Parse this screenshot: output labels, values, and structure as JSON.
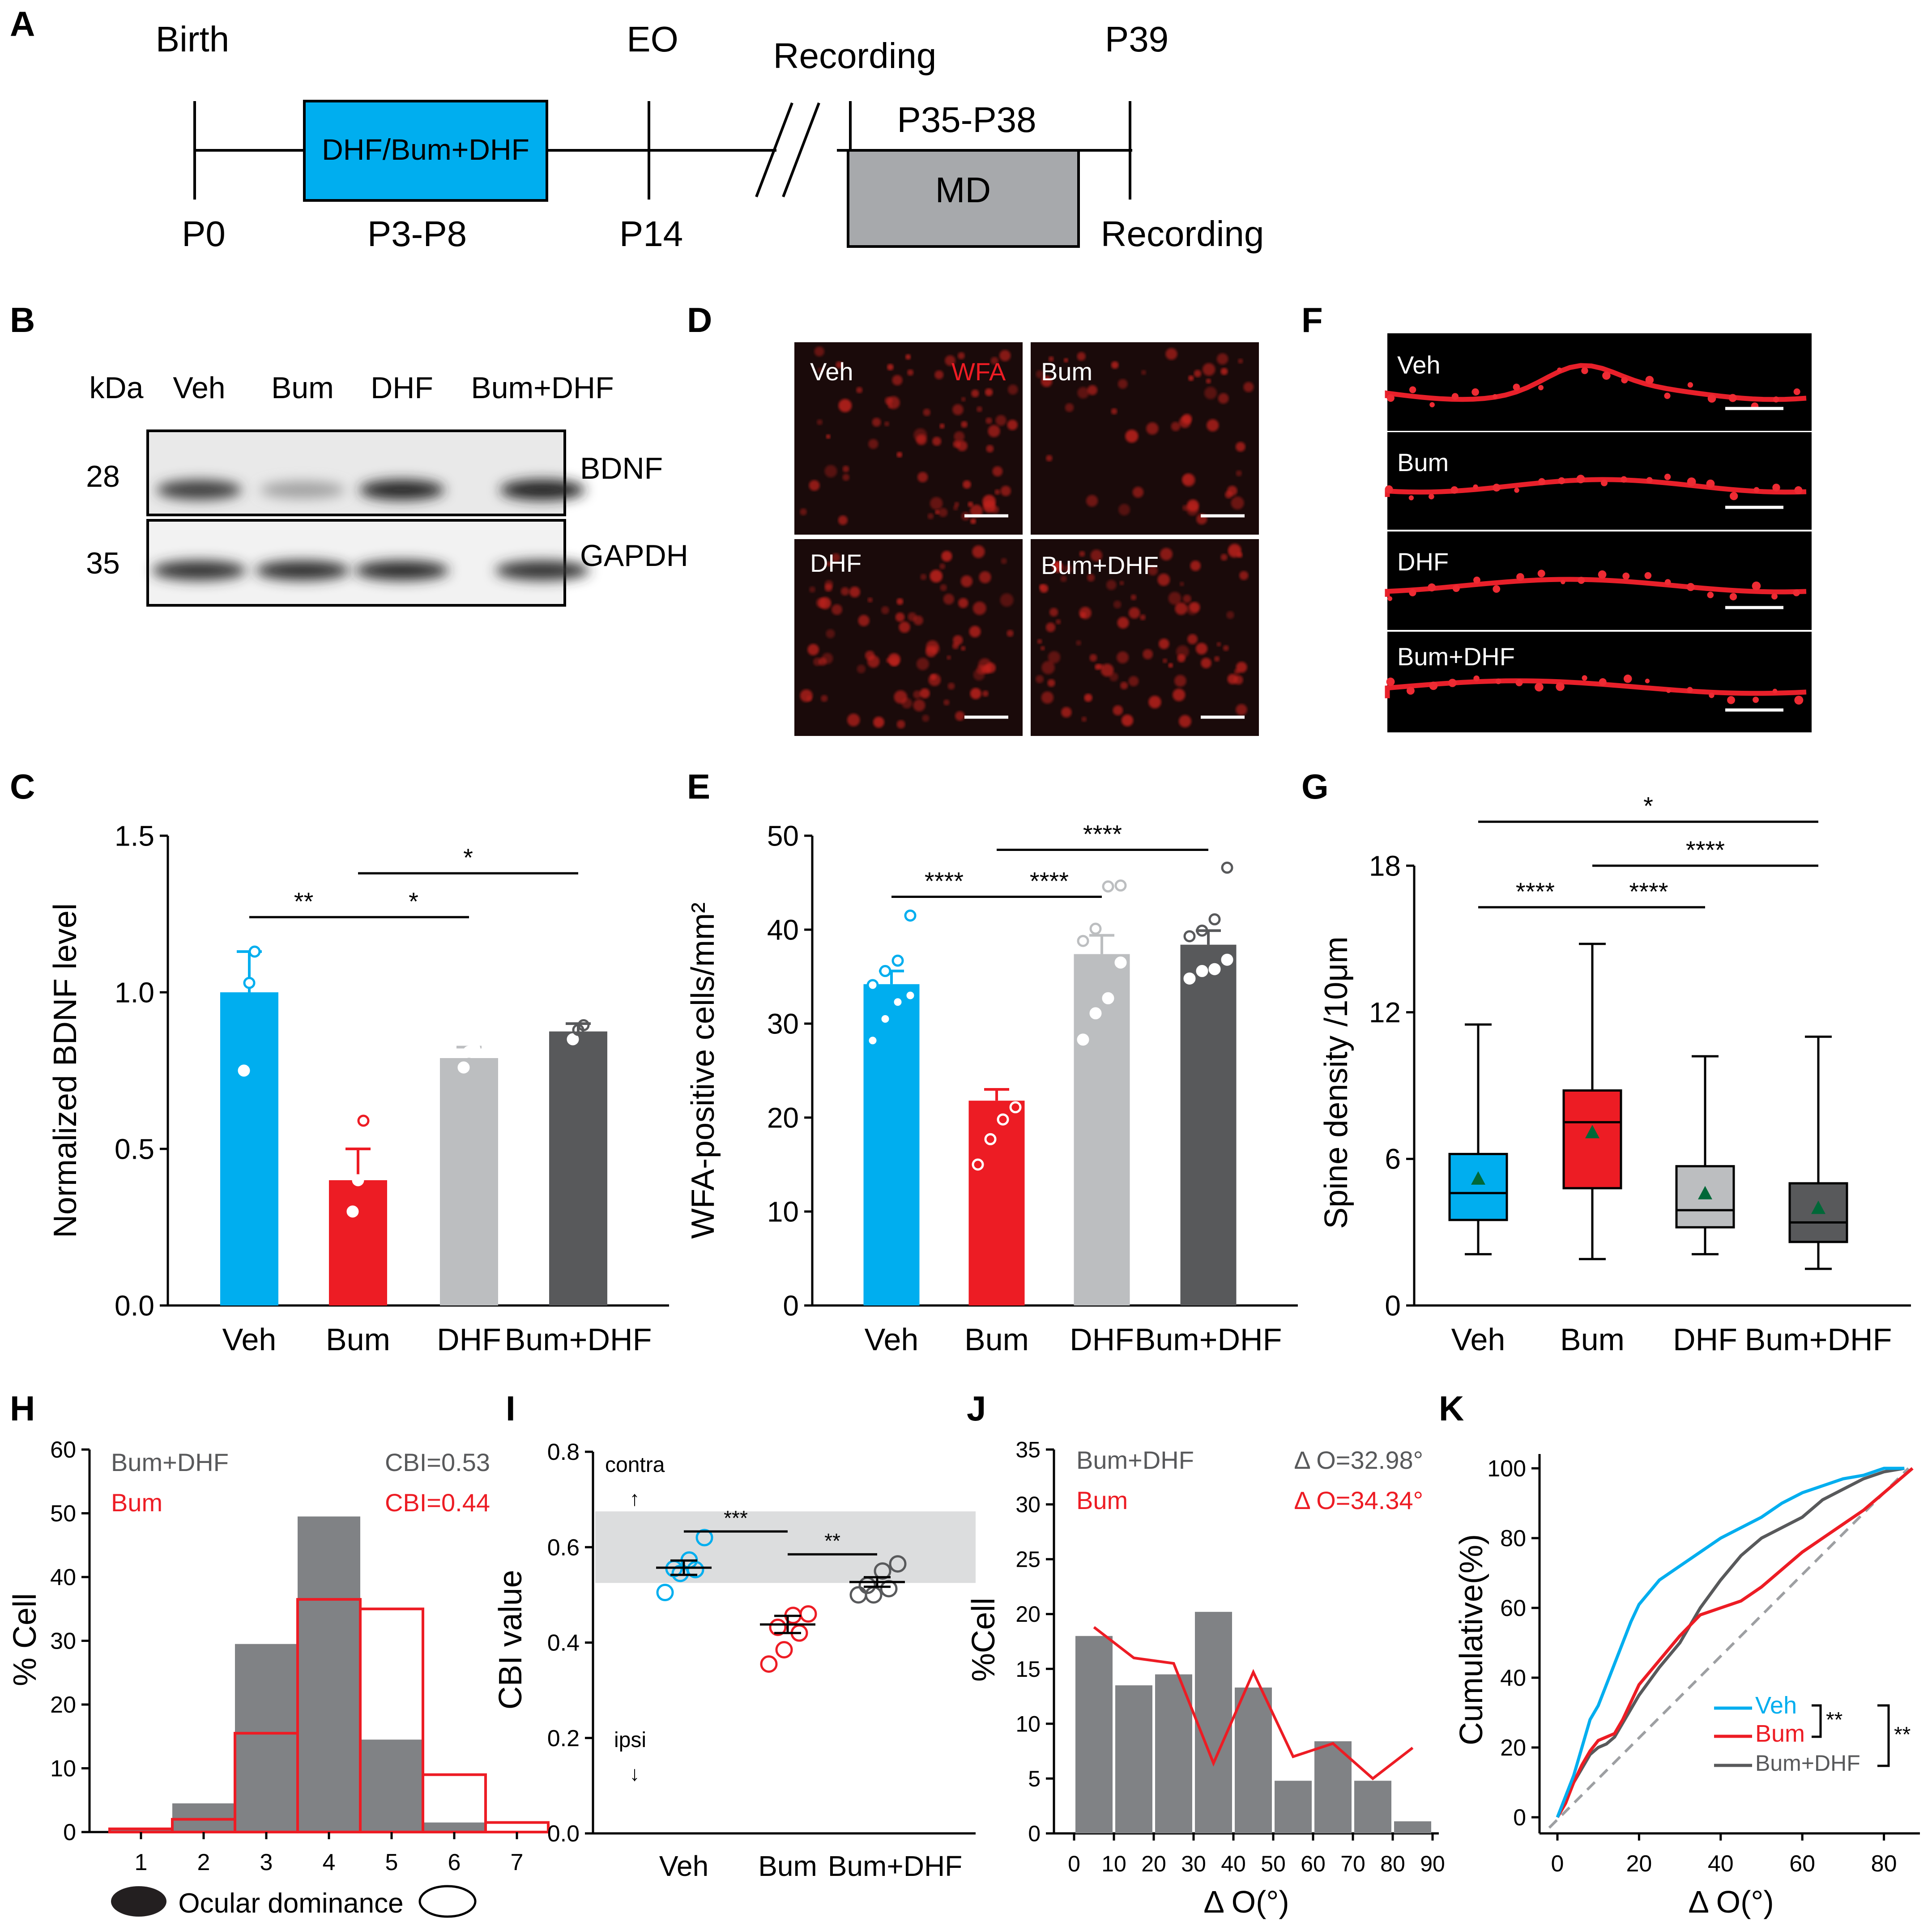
{
  "colors": {
    "veh": "#00AEEF",
    "bum": "#ED1C24",
    "dhf": "#BCBEC0",
    "bumdhf": "#58595B",
    "hist_gray": "#808285",
    "band": "#DCDDDE",
    "median_marker": "#006838"
  },
  "panelA": {
    "letter": "A",
    "birth": "Birth",
    "eo": "EO",
    "recording_top": "Recording",
    "p39": "P39",
    "drug_box": "DHF/Bum+DHF",
    "p35_p38": "P35-P38",
    "md_box": "MD",
    "p0": "P0",
    "p3_p8": "P3-P8",
    "p14": "P14",
    "recording_bottom": "Recording"
  },
  "panelB": {
    "letter": "B",
    "kda": "kDa",
    "lanes": [
      "Veh",
      "Bum",
      "DHF",
      "Bum+DHF"
    ],
    "mw_top": "28",
    "mw_bottom": "35",
    "band_top": "BDNF",
    "band_bottom": "GAPDH",
    "bdnf_intensity": [
      0.85,
      0.35,
      0.95,
      0.98
    ],
    "gapdh_intensity": [
      0.9,
      0.92,
      0.94,
      0.9
    ]
  },
  "panelD": {
    "letter": "D",
    "labels": [
      "Veh",
      "Bum",
      "DHF",
      "Bum+DHF"
    ],
    "stain": "WFA"
  },
  "panelF": {
    "letter": "F",
    "labels": [
      "Veh",
      "Bum",
      "DHF",
      "Bum+DHF"
    ]
  },
  "chart_data": [
    {
      "panel": "C",
      "type": "bar",
      "categories": [
        "Veh",
        "Bum",
        "DHF",
        "Bum+DHF"
      ],
      "values": [
        1.0,
        0.4,
        0.79,
        0.875
      ],
      "errors": [
        0.13,
        0.1,
        0.035,
        0.025
      ],
      "points": [
        [
          0.75,
          1.03,
          1.13
        ],
        [
          0.3,
          0.4,
          0.59
        ],
        [
          0.76,
          0.81,
          0.82
        ],
        [
          0.85,
          0.88,
          0.895
        ]
      ],
      "ylabel": "Normalized BDNF level",
      "ylim": [
        0,
        1.5
      ],
      "yticks": [
        "0.0",
        "0.5",
        "1.0",
        "1.5"
      ],
      "significance": [
        {
          "from": 0,
          "to": 1,
          "y": 1.24,
          "label": "**"
        },
        {
          "from": 1,
          "to": 2,
          "y": 1.24,
          "label": "*"
        },
        {
          "from": 1,
          "to": 3,
          "y": 1.38,
          "label": "*"
        }
      ]
    },
    {
      "panel": "E",
      "type": "bar",
      "categories": [
        "Veh",
        "Bum",
        "DHF",
        "Bum+DHF"
      ],
      "values": [
        34.2,
        21.8,
        37.4,
        38.4
      ],
      "errors": [
        1.4,
        1.2,
        2.0,
        1.5
      ],
      "points": [
        [
          28.2,
          30.5,
          32.3,
          33.0,
          34.1,
          35.6,
          36.7,
          41.5
        ],
        [
          15.0,
          17.7,
          19.8,
          21.1,
          22.7,
          23.8,
          24.8,
          25.0
        ],
        [
          28.3,
          31.1,
          32.7,
          36.5,
          38.8,
          40.1,
          44.6,
          44.7
        ],
        [
          34.8,
          35.6,
          35.8,
          36.8,
          39.3,
          39.9,
          41.1,
          46.6
        ]
      ],
      "ylabel": "WFA-positive cells/mm²",
      "ylim": [
        0,
        50
      ],
      "yticks": [
        "0",
        "10",
        "20",
        "30",
        "40",
        "50"
      ],
      "significance": [
        {
          "from": 0,
          "to": 1,
          "y": 43.5,
          "label": "****"
        },
        {
          "from": 1,
          "to": 2,
          "y": 43.5,
          "label": "****"
        },
        {
          "from": 1,
          "to": 3,
          "y": 48.5,
          "label": "****"
        }
      ]
    },
    {
      "panel": "G",
      "type": "box",
      "categories": [
        "Veh",
        "Bum",
        "DHF",
        "Bum+DHF"
      ],
      "boxes": [
        {
          "min": 2.1,
          "q1": 3.5,
          "median": 4.6,
          "q3": 6.2,
          "max": 11.5,
          "mean": 5.2
        },
        {
          "min": 1.9,
          "q1": 4.8,
          "median": 7.5,
          "q3": 8.8,
          "max": 14.8,
          "mean": 7.1
        },
        {
          "min": 2.1,
          "q1": 3.2,
          "median": 3.9,
          "q3": 5.7,
          "max": 10.2,
          "mean": 4.6
        },
        {
          "min": 1.5,
          "q1": 2.6,
          "median": 3.4,
          "q3": 5.0,
          "max": 11.0,
          "mean": 4.0
        }
      ],
      "ylabel": "Spine density /10μm",
      "ylim": [
        0,
        18
      ],
      "yticks": [
        "0",
        "6",
        "12",
        "18"
      ],
      "significance": [
        {
          "from": 0,
          "to": 1,
          "y": 16.3,
          "label": "****"
        },
        {
          "from": 1,
          "to": 2,
          "y": 16.3,
          "label": "****"
        },
        {
          "from": 1,
          "to": 3,
          "y": 18.0,
          "label": "****"
        },
        {
          "from": 0,
          "to": 3,
          "y": 19.8,
          "label": "*"
        }
      ]
    },
    {
      "panel": "H",
      "type": "bar",
      "categories": [
        "1",
        "2",
        "3",
        "4",
        "5",
        "6",
        "7"
      ],
      "series": [
        {
          "name": "Bum+DHF",
          "values": [
            0.5,
            4.5,
            29.5,
            49.5,
            14.5,
            1.5,
            0.0
          ]
        },
        {
          "name": "Bum",
          "values": [
            0.5,
            2.0,
            15.5,
            36.5,
            35.0,
            9.0,
            1.5
          ]
        }
      ],
      "legend_cbi": [
        "CBI=0.53",
        "CBI=0.44"
      ],
      "ylabel": "% Cell",
      "xlabel": "Ocular dominance",
      "ylim": [
        0,
        60
      ],
      "yticks": [
        "0",
        "10",
        "20",
        "30",
        "40",
        "50",
        "60"
      ]
    },
    {
      "panel": "I",
      "type": "scatter",
      "categories": [
        "Veh",
        "Bum",
        "Bum+DHF"
      ],
      "means": [
        0.557,
        0.438,
        0.527
      ],
      "sem": [
        0.015,
        0.018,
        0.01
      ],
      "points": [
        [
          0.505,
          0.545,
          0.553,
          0.555,
          0.573,
          0.62
        ],
        [
          0.355,
          0.385,
          0.42,
          0.432,
          0.457,
          0.46
        ],
        [
          0.5,
          0.5,
          0.513,
          0.52,
          0.55,
          0.565
        ]
      ],
      "band": [
        0.525,
        0.675
      ],
      "contra_label": "contra",
      "ipsi_label": "ipsi",
      "ylabel": "CBI value",
      "ylim": [
        0,
        0.8
      ],
      "yticks": [
        "0.0",
        "0.2",
        "0.4",
        "0.6",
        "0.8"
      ],
      "significance": [
        {
          "from": 0,
          "to": 1,
          "y": 0.633,
          "label": "***"
        },
        {
          "from": 1,
          "to": 2,
          "y": 0.585,
          "label": "**"
        }
      ]
    },
    {
      "panel": "J",
      "type": "bar",
      "x": [
        5,
        15,
        25,
        35,
        45,
        55,
        65,
        75,
        85
      ],
      "series": [
        {
          "name": "Bum+DHF",
          "values": [
            18.0,
            13.5,
            14.5,
            20.2,
            13.3,
            4.8,
            8.4,
            4.8,
            1.1
          ]
        },
        {
          "name": "Bum",
          "values": [
            18.8,
            16.0,
            15.5,
            6.4,
            14.7,
            7.0,
            8.2,
            5.0,
            7.8
          ]
        }
      ],
      "legend_delta": [
        "Δ O=32.98°",
        "Δ O=34.34°"
      ],
      "ylabel": "%Cell",
      "xlabel": "Δ O(°)",
      "xticks": [
        "0",
        "10",
        "20",
        "30",
        "40",
        "50",
        "60",
        "70",
        "80",
        "90"
      ],
      "ylim": [
        0,
        35
      ],
      "yticks": [
        "0",
        "5",
        "10",
        "15",
        "20",
        "25",
        "30",
        "35"
      ]
    },
    {
      "panel": "K",
      "type": "line",
      "series": [
        {
          "name": "Veh",
          "x": [
            0,
            2,
            4,
            6,
            8,
            10,
            12,
            14,
            16,
            18,
            20,
            25,
            30,
            35,
            40,
            45,
            50,
            55,
            60,
            65,
            70,
            75,
            80,
            85
          ],
          "y": [
            0,
            6,
            12,
            20,
            28,
            32,
            38,
            44,
            50,
            56,
            61,
            68,
            72,
            76,
            80,
            83,
            86,
            90,
            93,
            95,
            97,
            98,
            100,
            100
          ]
        },
        {
          "name": "Bum",
          "x": [
            0,
            2,
            4,
            6,
            8,
            10,
            12,
            14,
            16,
            18,
            20,
            25,
            30,
            35,
            40,
            45,
            50,
            55,
            60,
            65,
            70,
            75,
            80,
            85,
            87
          ],
          "y": [
            0,
            4,
            10,
            15,
            19,
            22,
            23,
            24,
            28,
            33,
            38,
            45,
            52,
            58,
            60,
            62,
            66,
            71,
            76,
            80,
            84,
            88,
            93,
            98,
            100
          ]
        },
        {
          "name": "Bum+DHF",
          "x": [
            0,
            2,
            4,
            6,
            8,
            10,
            12,
            14,
            16,
            18,
            20,
            25,
            30,
            35,
            40,
            45,
            50,
            55,
            60,
            65,
            70,
            75,
            80,
            85
          ],
          "y": [
            0,
            5,
            10,
            14,
            18,
            20,
            21,
            23,
            27,
            31,
            35,
            43,
            50,
            60,
            68,
            75,
            80,
            83,
            86,
            91,
            94,
            97,
            99,
            100
          ]
        }
      ],
      "reference": "diagonal",
      "significance": [
        "**",
        "**"
      ],
      "ylabel": "Cumulative(%)",
      "xlabel": "Δ O(°)",
      "xlim": [
        0,
        87
      ],
      "xticks": [
        "0",
        "20",
        "40",
        "60",
        "80"
      ],
      "ylim": [
        0,
        100
      ],
      "yticks": [
        "0",
        "20",
        "40",
        "60",
        "80",
        "100"
      ]
    }
  ]
}
